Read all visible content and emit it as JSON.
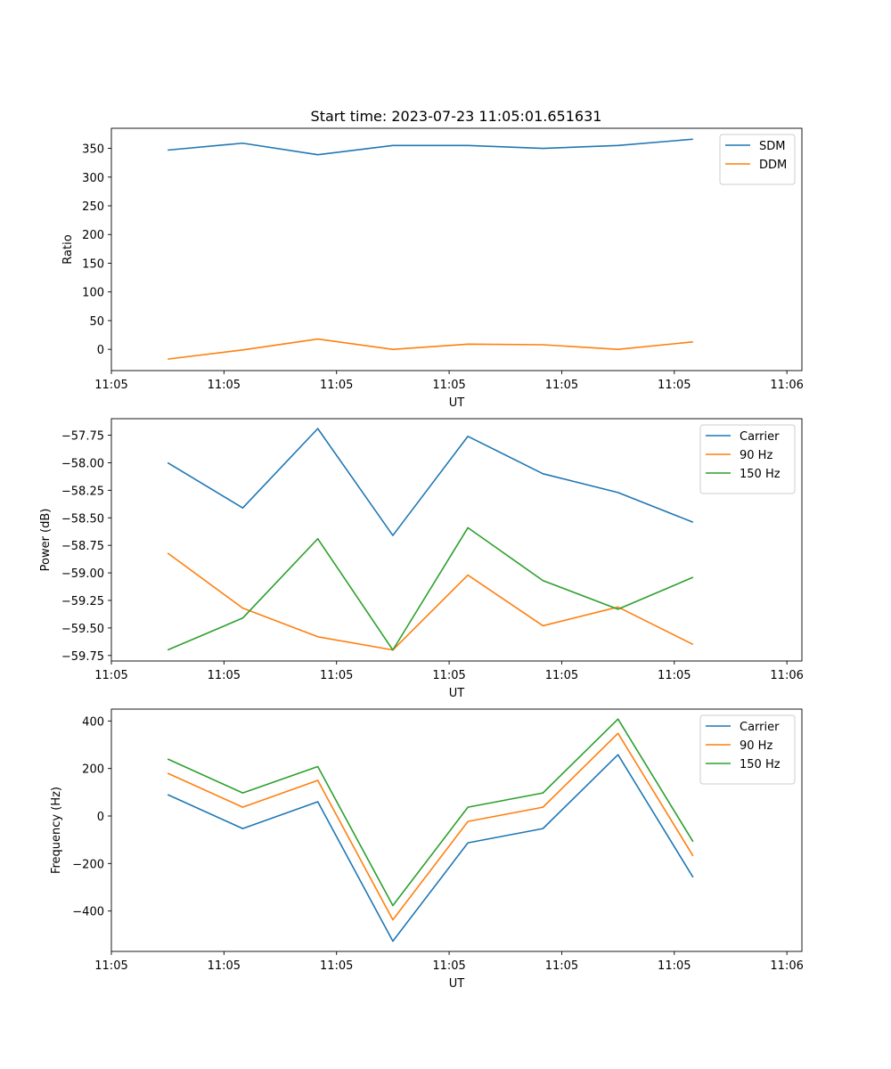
{
  "chart_data": [
    {
      "type": "line",
      "title": "Start time: 2023-07-23 11:05:01.651631",
      "xlabel": "UT",
      "ylabel": "Ratio",
      "x": [
        0,
        1,
        2,
        3,
        4,
        5,
        6,
        7
      ],
      "xlim": [
        -0.75,
        8.45
      ],
      "xticks": [
        -0.75,
        0.75,
        2.25,
        3.75,
        5.25,
        6.75,
        8.25
      ],
      "xtick_labels": [
        "11:05",
        "11:05",
        "11:05",
        "11:05",
        "11:05",
        "11:05",
        "11:06"
      ],
      "ylim": [
        -37,
        385
      ],
      "yticks": [
        0,
        50,
        100,
        150,
        200,
        250,
        300,
        350
      ],
      "ytick_labels": [
        "0",
        "50",
        "100",
        "150",
        "200",
        "250",
        "300",
        "350"
      ],
      "legend_position": "top-right",
      "series": [
        {
          "name": "SDM",
          "color": "#1f77b4",
          "values": [
            347,
            359,
            339,
            355,
            355,
            350,
            355,
            366
          ]
        },
        {
          "name": "DDM",
          "color": "#ff7f0e",
          "values": [
            -17,
            -1,
            18,
            0,
            9,
            8,
            0,
            13
          ]
        }
      ]
    },
    {
      "type": "line",
      "title": "",
      "xlabel": "UT",
      "ylabel": "Power (dB)",
      "x": [
        0,
        1,
        2,
        3,
        4,
        5,
        6,
        7
      ],
      "xlim": [
        -0.75,
        8.45
      ],
      "xticks": [
        -0.75,
        0.75,
        2.25,
        3.75,
        5.25,
        6.75,
        8.25
      ],
      "xtick_labels": [
        "11:05",
        "11:05",
        "11:05",
        "11:05",
        "11:05",
        "11:05",
        "11:06"
      ],
      "ylim": [
        -59.8,
        -57.6
      ],
      "yticks": [
        -59.75,
        -59.5,
        -59.25,
        -59.0,
        -58.75,
        -58.5,
        -58.25,
        -58.0,
        -57.75
      ],
      "ytick_labels": [
        "−59.75",
        "−59.50",
        "−59.25",
        "−59.00",
        "−58.75",
        "−58.50",
        "−58.25",
        "−58.00",
        "−57.75"
      ],
      "legend_position": "top-right",
      "series": [
        {
          "name": "Carrier",
          "color": "#1f77b4",
          "values": [
            -58.0,
            -58.41,
            -57.69,
            -58.66,
            -57.76,
            -58.1,
            -58.27,
            -58.54
          ]
        },
        {
          "name": "90 Hz",
          "color": "#ff7f0e",
          "values": [
            -58.82,
            -59.32,
            -59.58,
            -59.7,
            -59.02,
            -59.48,
            -59.31,
            -59.65
          ]
        },
        {
          "name": "150 Hz",
          "color": "#2ca02c",
          "values": [
            -59.7,
            -59.41,
            -58.69,
            -59.7,
            -58.59,
            -59.07,
            -59.33,
            -59.04
          ]
        }
      ]
    },
    {
      "type": "line",
      "title": "",
      "xlabel": "UT",
      "ylabel": "Frequency (Hz)",
      "x": [
        0,
        1,
        2,
        3,
        4,
        5,
        6,
        7
      ],
      "xlim": [
        -0.75,
        8.45
      ],
      "xticks": [
        -0.75,
        0.75,
        2.25,
        3.75,
        5.25,
        6.75,
        8.25
      ],
      "xtick_labels": [
        "11:05",
        "11:05",
        "11:05",
        "11:05",
        "11:05",
        "11:05",
        "11:06"
      ],
      "ylim": [
        -570,
        450
      ],
      "yticks": [
        -400,
        -200,
        0,
        200,
        400
      ],
      "ytick_labels": [
        "−400",
        "−200",
        "0",
        "200",
        "400"
      ],
      "legend_position": "top-right",
      "series": [
        {
          "name": "Carrier",
          "color": "#1f77b4",
          "values": [
            90,
            -53,
            60,
            -527,
            -113,
            -53,
            258,
            -258
          ]
        },
        {
          "name": "90 Hz",
          "color": "#ff7f0e",
          "values": [
            180,
            37,
            150,
            -437,
            -23,
            37,
            348,
            -168
          ]
        },
        {
          "name": "150 Hz",
          "color": "#2ca02c",
          "values": [
            240,
            97,
            208,
            -377,
            37,
            97,
            408,
            -108
          ]
        }
      ]
    }
  ]
}
